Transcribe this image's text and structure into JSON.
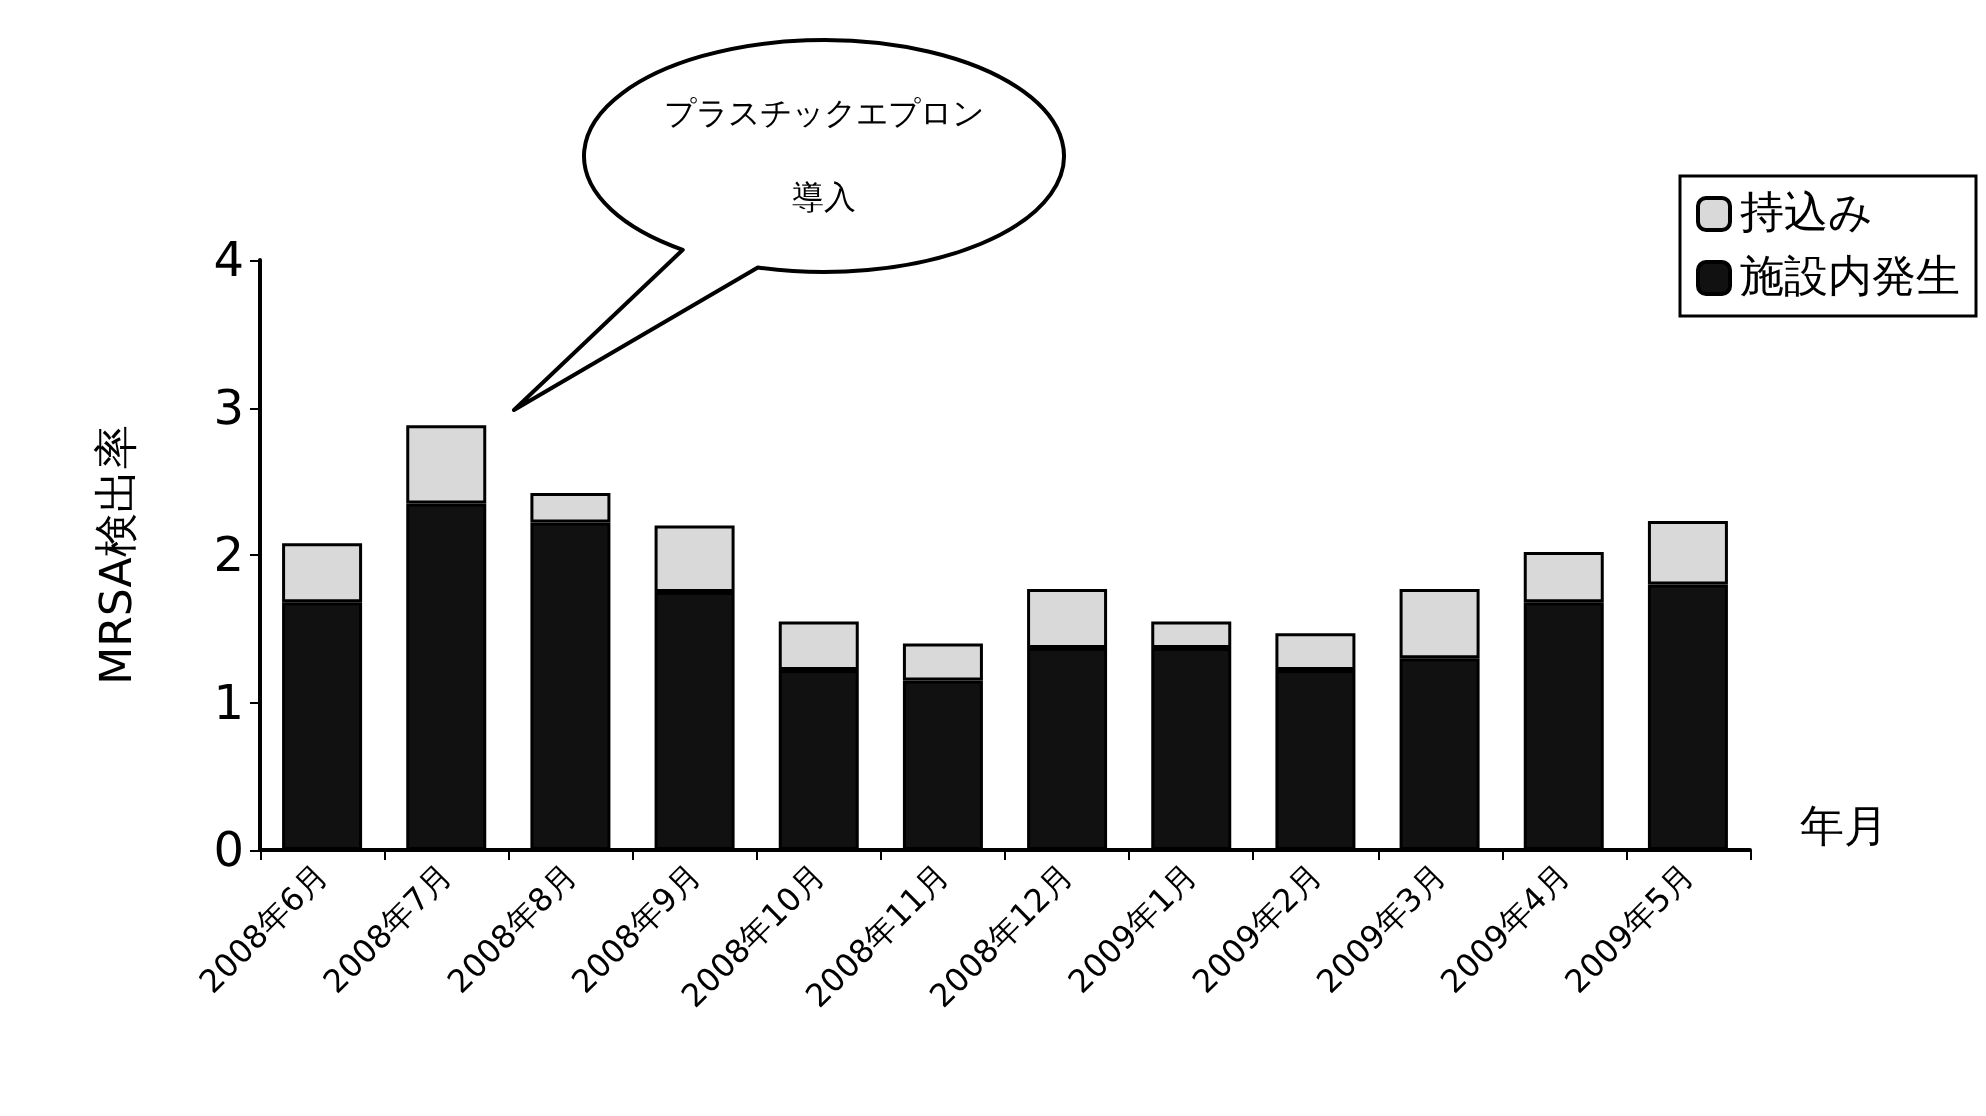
{
  "chart_data": {
    "type": "bar",
    "stacked": true,
    "xlabel": "年月",
    "ylabel": "MRSA検出率",
    "categories": [
      "2008年6月",
      "2008年7月",
      "2008年8月",
      "2008年9月",
      "2008年10月",
      "2008年11月",
      "2008年12月",
      "2009年1月",
      "2009年2月",
      "2009年3月",
      "2009年4月",
      "2009年5月"
    ],
    "series": [
      {
        "name": "施設内発生",
        "color": "#111111",
        "values": [
          1.68,
          2.35,
          2.22,
          1.75,
          1.22,
          1.15,
          1.37,
          1.37,
          1.22,
          1.3,
          1.68,
          1.8
        ]
      },
      {
        "name": "持込み",
        "color": "#d9d9d9",
        "values": [
          0.4,
          0.53,
          0.2,
          0.45,
          0.33,
          0.25,
          0.4,
          0.18,
          0.25,
          0.47,
          0.34,
          0.43
        ]
      }
    ],
    "ylim": [
      0,
      4
    ],
    "yticks": [
      0,
      1,
      2,
      3,
      4
    ],
    "grid": false,
    "legend": "top right",
    "annotations": [
      "プラスチックエプロン導入"
    ]
  }
}
